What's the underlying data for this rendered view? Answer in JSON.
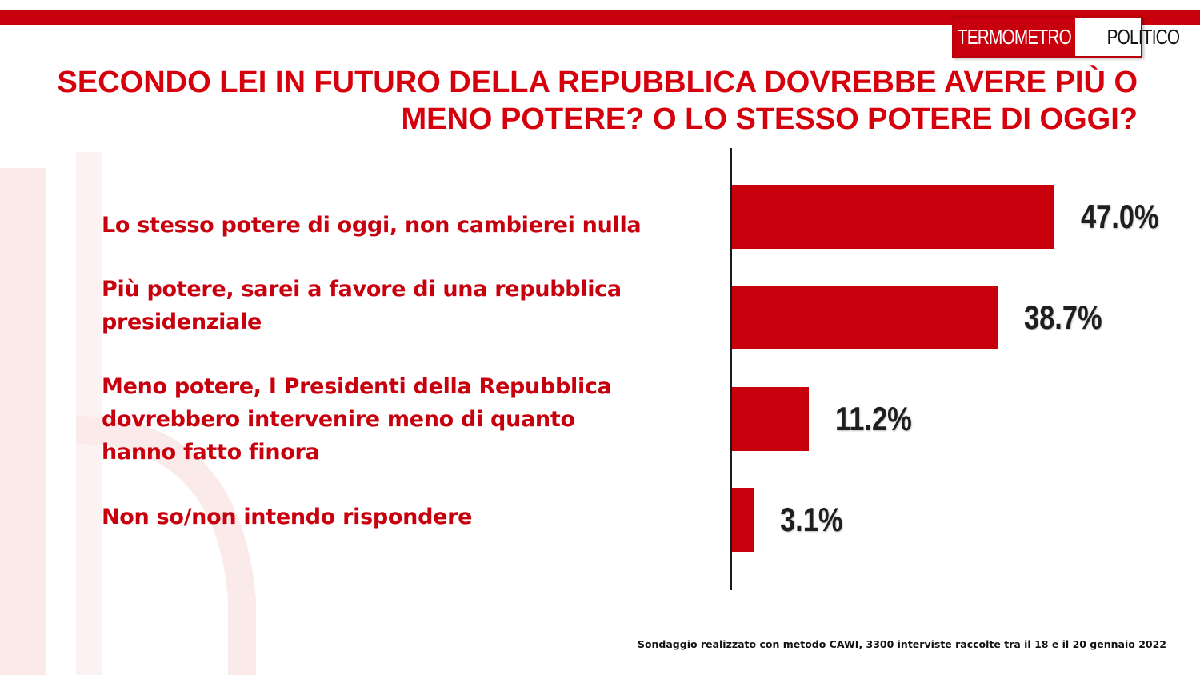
{
  "brand": {
    "logo_part1": "TERMOMETRO",
    "logo_part2": "POLITICO",
    "accent_color": "#c8000d"
  },
  "chart_data": {
    "type": "bar",
    "orientation": "horizontal",
    "title": "SECONDO LEI IN FUTURO DELLA REPUBBLICA DOVREBBE AVERE PIÙ O MENO POTERE? O LO STESSO POTERE DI OGGI?",
    "categories": [
      "Lo stesso potere di oggi, non cambierei nulla",
      "Più potere, sarei a favore di una repubblica\npresidenziale",
      "Meno potere, I Presidenti della Repubblica\ndovrebbero intervenire meno di quanto\nhanno fatto finora",
      "Non so/non intendo rispondere"
    ],
    "values": [
      47.0,
      38.7,
      11.2,
      3.1
    ],
    "value_labels": [
      "47.0%",
      "38.7%",
      "11.2%",
      "3.1%"
    ],
    "unit": "%",
    "xlim": [
      0,
      50
    ],
    "grid": false,
    "legend": "none",
    "bar_color": "#c8000d"
  },
  "footnote": "Sondaggio realizzato con metodo CAWI, 3300 interviste raccolte tra il 18 e il 20 gennaio 2022"
}
